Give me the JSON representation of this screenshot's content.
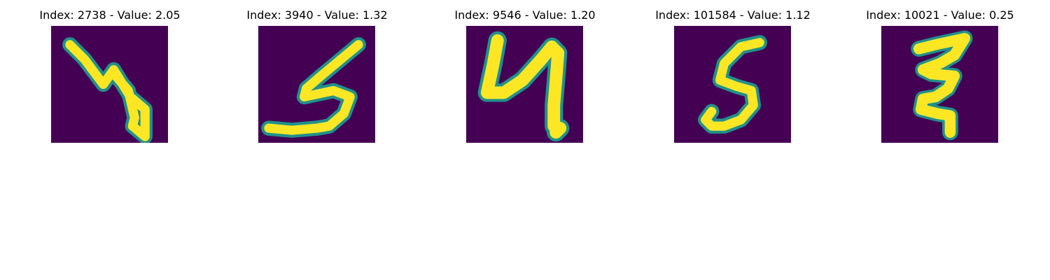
{
  "colors": {
    "background": "#440154",
    "edge": "#21918c",
    "foreground": "#fde725"
  },
  "panels": [
    {
      "title": "Index: 2738 - Value: 2.05",
      "image": "handwritten-digit-4"
    },
    {
      "title": "Index: 3940 - Value: 1.32",
      "image": "handwritten-digit-5"
    },
    {
      "title": "Index: 9546 - Value: 1.20",
      "image": "handwritten-digit-4"
    },
    {
      "title": "Index: 101584 - Value: 1.12",
      "image": "handwritten-digit-5"
    },
    {
      "title": "Index: 10021 - Value: 0.25",
      "image": "handwritten-digit-3"
    }
  ]
}
